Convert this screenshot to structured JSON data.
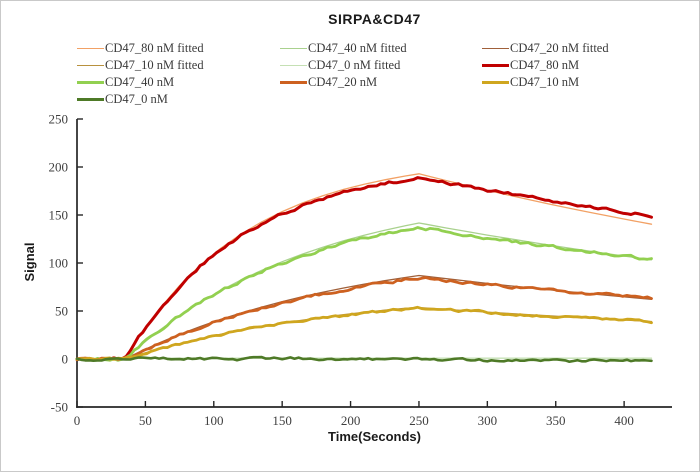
{
  "figure": {
    "title": "SIRPA&CD47",
    "colors": {
      "axis": "#262626",
      "tick_text": "#3f3f3f",
      "border": "#c9c9c9",
      "background": "#ffffff"
    }
  },
  "chart_data": {
    "type": "line",
    "title": "SIRPA&CD47",
    "xlabel": "Time(Seconds)",
    "ylabel": "Signal",
    "xlim": [
      0,
      435
    ],
    "ylim": [
      -50,
      250
    ],
    "x_ticks": [
      0,
      50,
      100,
      150,
      200,
      250,
      300,
      350,
      400
    ],
    "y_ticks": [
      250,
      200,
      150,
      100,
      50,
      0,
      -50
    ],
    "grid": false,
    "legend_position": "top",
    "association_start_s": 35,
    "association_end_s": 250,
    "run_end_s": 420,
    "series": [
      {
        "name": "CD47_80 nM fitted",
        "color": "#f2a165",
        "width": 1.3,
        "noise": 0,
        "points": [
          [
            35,
            0
          ],
          [
            45,
            22.5
          ],
          [
            60,
            51.8
          ],
          [
            75,
            76.5
          ],
          [
            90,
            97.5
          ],
          [
            105,
            115.2
          ],
          [
            120,
            130.2
          ],
          [
            135,
            142.8
          ],
          [
            150,
            153.5
          ],
          [
            165,
            162.6
          ],
          [
            180,
            170.2
          ],
          [
            195,
            176.7
          ],
          [
            210,
            182.1
          ],
          [
            225,
            186.7
          ],
          [
            240,
            190.6
          ],
          [
            250,
            192.9
          ],
          [
            255,
            191.1
          ],
          [
            270,
            185.8
          ],
          [
            285,
            180.7
          ],
          [
            300,
            175.7
          ],
          [
            315,
            170.8
          ],
          [
            330,
            166.1
          ],
          [
            345,
            161.5
          ],
          [
            360,
            157.0
          ],
          [
            375,
            152.7
          ],
          [
            390,
            148.5
          ],
          [
            405,
            144.4
          ],
          [
            420,
            140.4
          ]
        ]
      },
      {
        "name": "CD47_40 nM fitted",
        "color": "#a9d18e",
        "width": 1.3,
        "noise": 0,
        "points": [
          [
            35,
            0
          ],
          [
            45,
            12.5
          ],
          [
            60,
            29.7
          ],
          [
            75,
            45.0
          ],
          [
            90,
            58.9
          ],
          [
            105,
            71.3
          ],
          [
            120,
            82.4
          ],
          [
            135,
            92.4
          ],
          [
            150,
            101.4
          ],
          [
            165,
            109.4
          ],
          [
            180,
            116.6
          ],
          [
            195,
            123.1
          ],
          [
            210,
            129.0
          ],
          [
            225,
            134.2
          ],
          [
            240,
            138.9
          ],
          [
            250,
            141.7
          ],
          [
            255,
            140.4
          ],
          [
            270,
            136.5
          ],
          [
            285,
            132.8
          ],
          [
            300,
            129.1
          ],
          [
            315,
            125.6
          ],
          [
            330,
            122.1
          ],
          [
            345,
            118.7
          ],
          [
            360,
            115.5
          ],
          [
            375,
            112.3
          ],
          [
            390,
            109.2
          ],
          [
            405,
            106.2
          ],
          [
            420,
            103.3
          ]
        ]
      },
      {
        "name": "CD47_20 nM fitted",
        "color": "#a0603a",
        "width": 1.3,
        "noise": 0,
        "points": [
          [
            35,
            0
          ],
          [
            45,
            7.0
          ],
          [
            60,
            16.7
          ],
          [
            75,
            25.6
          ],
          [
            90,
            33.7
          ],
          [
            105,
            41.2
          ],
          [
            120,
            47.9
          ],
          [
            135,
            54.1
          ],
          [
            150,
            59.8
          ],
          [
            165,
            65.0
          ],
          [
            180,
            69.7
          ],
          [
            195,
            74.0
          ],
          [
            210,
            78.0
          ],
          [
            225,
            81.6
          ],
          [
            240,
            84.9
          ],
          [
            250,
            87.0
          ],
          [
            255,
            86.1
          ],
          [
            270,
            83.6
          ],
          [
            285,
            81.2
          ],
          [
            300,
            78.8
          ],
          [
            315,
            76.5
          ],
          [
            330,
            74.3
          ],
          [
            345,
            72.2
          ],
          [
            360,
            70.0
          ],
          [
            375,
            68.0
          ],
          [
            390,
            66.0
          ],
          [
            405,
            64.1
          ],
          [
            420,
            62.2
          ]
        ]
      },
      {
        "name": "CD47_10 nM fitted",
        "color": "#b8913e",
        "width": 1.3,
        "noise": 0,
        "points": [
          [
            35,
            0
          ],
          [
            45,
            4.4
          ],
          [
            60,
            10.5
          ],
          [
            75,
            16.0
          ],
          [
            90,
            21.1
          ],
          [
            105,
            25.7
          ],
          [
            120,
            29.9
          ],
          [
            135,
            33.8
          ],
          [
            150,
            37.3
          ],
          [
            165,
            40.5
          ],
          [
            180,
            43.4
          ],
          [
            195,
            46.1
          ],
          [
            210,
            48.6
          ],
          [
            225,
            50.8
          ],
          [
            240,
            52.8
          ],
          [
            250,
            53.6
          ],
          [
            255,
            53.1
          ],
          [
            270,
            51.7
          ],
          [
            285,
            50.2
          ],
          [
            300,
            48.9
          ],
          [
            315,
            47.5
          ],
          [
            330,
            46.2
          ],
          [
            345,
            45.0
          ],
          [
            360,
            43.7
          ],
          [
            375,
            42.5
          ],
          [
            390,
            41.4
          ],
          [
            405,
            40.2
          ],
          [
            420,
            39.1
          ]
        ]
      },
      {
        "name": "CD47_0 nM fitted",
        "color": "#c5e0b4",
        "width": 1.3,
        "noise": 0,
        "points": [
          [
            35,
            0.8
          ],
          [
            420,
            0.8
          ]
        ]
      },
      {
        "name": "CD47_80 nM",
        "color": "#c00000",
        "width": 3.0,
        "noise": 2.6,
        "points": [
          [
            0,
            0
          ],
          [
            15,
            -0.4
          ],
          [
            30,
            0.3
          ],
          [
            35,
            0.5
          ],
          [
            45,
            22.4
          ],
          [
            60,
            51.5
          ],
          [
            75,
            76.0
          ],
          [
            90,
            96.6
          ],
          [
            105,
            113.9
          ],
          [
            120,
            128.5
          ],
          [
            135,
            140.8
          ],
          [
            150,
            151.1
          ],
          [
            165,
            159.8
          ],
          [
            180,
            167.1
          ],
          [
            195,
            173.3
          ],
          [
            210,
            178.5
          ],
          [
            225,
            182.8
          ],
          [
            240,
            186.5
          ],
          [
            250,
            188.6
          ],
          [
            255,
            187.3
          ],
          [
            270,
            183.5
          ],
          [
            285,
            179.7
          ],
          [
            300,
            176.0
          ],
          [
            315,
            172.4
          ],
          [
            330,
            168.9
          ],
          [
            345,
            165.4
          ],
          [
            360,
            162.0
          ],
          [
            375,
            158.7
          ],
          [
            390,
            155.5
          ],
          [
            405,
            152.3
          ],
          [
            420,
            149.2
          ]
        ]
      },
      {
        "name": "CD47_40 nM",
        "color": "#92d050",
        "width": 2.8,
        "noise": 2.6,
        "points": [
          [
            0,
            0.2
          ],
          [
            15,
            0.4
          ],
          [
            30,
            -0.2
          ],
          [
            35,
            0.3
          ],
          [
            45,
            12.6
          ],
          [
            60,
            29.8
          ],
          [
            75,
            45.1
          ],
          [
            90,
            58.7
          ],
          [
            105,
            70.8
          ],
          [
            120,
            81.6
          ],
          [
            135,
            91.3
          ],
          [
            150,
            99.9
          ],
          [
            165,
            107.5
          ],
          [
            180,
            114.3
          ],
          [
            195,
            120.4
          ],
          [
            210,
            125.8
          ],
          [
            225,
            130.6
          ],
          [
            240,
            134.9
          ],
          [
            250,
            137.5
          ],
          [
            255,
            136.4
          ],
          [
            270,
            133.0
          ],
          [
            285,
            129.6
          ],
          [
            300,
            126.4
          ],
          [
            315,
            123.3
          ],
          [
            330,
            120.2
          ],
          [
            345,
            117.2
          ],
          [
            360,
            114.3
          ],
          [
            375,
            111.5
          ],
          [
            390,
            108.7
          ],
          [
            405,
            106.0
          ],
          [
            420,
            103.3
          ]
        ]
      },
      {
        "name": "CD47_20 nM",
        "color": "#cd6120",
        "width": 2.8,
        "noise": 2.5,
        "points": [
          [
            0,
            -0.3
          ],
          [
            15,
            0.2
          ],
          [
            30,
            -0.4
          ],
          [
            35,
            0
          ],
          [
            45,
            6.9
          ],
          [
            60,
            16.5
          ],
          [
            75,
            25.3
          ],
          [
            90,
            33.2
          ],
          [
            105,
            40.5
          ],
          [
            120,
            47.1
          ],
          [
            135,
            53.1
          ],
          [
            150,
            58.6
          ],
          [
            165,
            63.6
          ],
          [
            180,
            68.2
          ],
          [
            195,
            72.3
          ],
          [
            210,
            76.1
          ],
          [
            225,
            79.6
          ],
          [
            240,
            82.7
          ],
          [
            250,
            84.7
          ],
          [
            255,
            84.0
          ],
          [
            270,
            81.8
          ],
          [
            285,
            79.8
          ],
          [
            300,
            77.7
          ],
          [
            315,
            75.7
          ],
          [
            330,
            73.8
          ],
          [
            345,
            71.9
          ],
          [
            360,
            70.1
          ],
          [
            375,
            68.3
          ],
          [
            390,
            66.6
          ],
          [
            405,
            64.9
          ],
          [
            420,
            63.2
          ]
        ]
      },
      {
        "name": "CD47_10 nM",
        "color": "#cfa61f",
        "width": 2.8,
        "noise": 2.2,
        "points": [
          [
            0,
            0.2
          ],
          [
            15,
            -0.3
          ],
          [
            30,
            0.1
          ],
          [
            35,
            0.2
          ],
          [
            45,
            4.3
          ],
          [
            60,
            10.3
          ],
          [
            75,
            15.8
          ],
          [
            90,
            20.8
          ],
          [
            105,
            25.3
          ],
          [
            120,
            29.5
          ],
          [
            135,
            33.3
          ],
          [
            150,
            36.7
          ],
          [
            165,
            39.8
          ],
          [
            180,
            42.7
          ],
          [
            195,
            45.3
          ],
          [
            210,
            47.7
          ],
          [
            225,
            49.8
          ],
          [
            240,
            51.8
          ],
          [
            250,
            53.0
          ],
          [
            255,
            52.5
          ],
          [
            270,
            51.1
          ],
          [
            285,
            49.8
          ],
          [
            300,
            48.5
          ],
          [
            315,
            47.2
          ],
          [
            330,
            46.0
          ],
          [
            345,
            44.8
          ],
          [
            360,
            43.6
          ],
          [
            375,
            42.4
          ],
          [
            390,
            41.3
          ],
          [
            405,
            40.2
          ],
          [
            420,
            39.2
          ]
        ]
      },
      {
        "name": "CD47_0 nM",
        "color": "#4e7a27",
        "width": 2.6,
        "noise": 2.2,
        "points": [
          [
            0,
            0.3
          ],
          [
            15,
            -0.2
          ],
          [
            30,
            0.4
          ],
          [
            45,
            0.8
          ],
          [
            60,
            0.2
          ],
          [
            75,
            0.9
          ],
          [
            90,
            0.1
          ],
          [
            105,
            0.6
          ],
          [
            120,
            -0.4
          ],
          [
            135,
            0.3
          ],
          [
            150,
            1.0
          ],
          [
            165,
            0.4
          ],
          [
            180,
            -0.2
          ],
          [
            195,
            0.5
          ],
          [
            210,
            -0.6
          ],
          [
            225,
            0.2
          ],
          [
            240,
            -0.8
          ],
          [
            255,
            -0.3
          ],
          [
            270,
            -1.2
          ],
          [
            285,
            -0.6
          ],
          [
            300,
            -1.4
          ],
          [
            315,
            -0.8
          ],
          [
            330,
            -1.6
          ],
          [
            345,
            -1.0
          ],
          [
            360,
            -2.0
          ],
          [
            375,
            -1.4
          ],
          [
            390,
            -2.2
          ],
          [
            405,
            -1.6
          ],
          [
            420,
            -2.4
          ]
        ]
      }
    ]
  }
}
